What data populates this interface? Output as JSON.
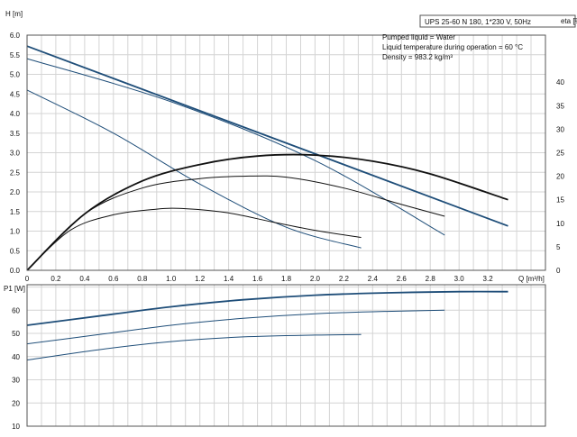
{
  "title_box": "UPS 25-60 N 180, 1*230 V, 50Hz",
  "info_lines": [
    "Pumped liquid = Water",
    "Liquid temperature during operation = 60 °C",
    "Density = 983.2 kg/m³"
  ],
  "colors": {
    "head": "#1f4e79",
    "efficiency": "#111111",
    "power": "#1f4e79",
    "grid": "#d4d4d4"
  },
  "chart_data": [
    {
      "type": "line",
      "xlabel": "Q [m³/h]",
      "ylabel": "H\n[m]",
      "y2label": "eta\n[%]",
      "xlim": [
        0,
        3.6
      ],
      "ylim": [
        0,
        6.0
      ],
      "y2lim": [
        0,
        50
      ],
      "xticks": [
        "0",
        "0.2",
        "0.4",
        "0.6",
        "0.8",
        "1.0",
        "1.2",
        "1.4",
        "1.6",
        "1.8",
        "2.0",
        "2.2",
        "2.4",
        "2.6",
        "2.8",
        "3.0",
        "3.2"
      ],
      "yticks": [
        "0.0",
        "0.5",
        "1.0",
        "1.5",
        "2.0",
        "2.5",
        "3.0",
        "3.5",
        "4.0",
        "4.5",
        "5.0",
        "5.5",
        "6.0"
      ],
      "y2ticks": [
        "0",
        "5",
        "10",
        "15",
        "20",
        "25",
        "30",
        "35",
        "40"
      ],
      "grid": true,
      "series": [
        {
          "group": "head",
          "speed": 3,
          "axis": "left",
          "x": [
            0,
            3.34
          ],
          "y": [
            5.72,
            1.13
          ]
        },
        {
          "group": "head",
          "speed": 2,
          "axis": "left",
          "x": [
            0,
            1.0,
            2.0,
            2.9
          ],
          "y": [
            5.4,
            4.3,
            2.8,
            0.9
          ]
        },
        {
          "group": "head",
          "speed": 1,
          "axis": "left",
          "x": [
            0,
            0.6,
            1.2,
            1.8,
            2.32
          ],
          "y": [
            4.6,
            3.5,
            2.2,
            1.1,
            0.57
          ]
        },
        {
          "group": "efficiency",
          "speed": 3,
          "axis": "right",
          "x": [
            0,
            0.4,
            0.8,
            1.2,
            1.6,
            2.0,
            2.4,
            2.8,
            3.34
          ],
          "y": [
            0,
            12,
            19,
            22.5,
            24.3,
            24.5,
            23.2,
            20.5,
            15
          ]
        },
        {
          "group": "efficiency",
          "speed": 2,
          "axis": "right",
          "x": [
            0,
            0.4,
            0.8,
            1.2,
            1.5,
            1.8,
            2.2,
            2.6,
            2.9
          ],
          "y": [
            0,
            12,
            17.5,
            19.5,
            20,
            19.8,
            17.5,
            14,
            11.5
          ]
        },
        {
          "group": "efficiency",
          "speed": 1,
          "axis": "right",
          "x": [
            0,
            0.3,
            0.6,
            0.9,
            1.1,
            1.4,
            1.7,
            2.0,
            2.32
          ],
          "y": [
            0,
            8.5,
            11.8,
            13.0,
            13.1,
            12.2,
            10.3,
            8.5,
            7.0
          ]
        }
      ]
    },
    {
      "type": "line",
      "xlabel": "",
      "ylabel": "P1\n[W]",
      "xlim": [
        0,
        3.6
      ],
      "ylim": [
        10,
        71
      ],
      "yticks": [
        "10",
        "20",
        "30",
        "40",
        "50",
        "60"
      ],
      "grid": true,
      "series": [
        {
          "group": "power",
          "speed": 3,
          "x": [
            0,
            0.5,
            1.0,
            1.5,
            2.0,
            2.5,
            3.0,
            3.34
          ],
          "y": [
            53.5,
            57.5,
            61.5,
            64.5,
            66.5,
            67.5,
            68,
            68
          ]
        },
        {
          "group": "power",
          "speed": 2,
          "x": [
            0,
            0.5,
            1.0,
            1.5,
            2.0,
            2.5,
            2.9
          ],
          "y": [
            45.5,
            49.5,
            53.5,
            56.5,
            58.5,
            59.5,
            60
          ]
        },
        {
          "group": "power",
          "speed": 1,
          "x": [
            0,
            0.5,
            1.0,
            1.5,
            2.0,
            2.32
          ],
          "y": [
            38.5,
            43,
            46.5,
            48.5,
            49.3,
            49.5
          ]
        }
      ]
    }
  ]
}
